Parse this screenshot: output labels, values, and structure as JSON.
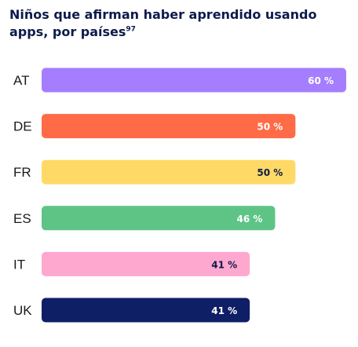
{
  "title": {
    "text": "Niños que afirman haber aprendido usando apps, por países",
    "footnote": "97"
  },
  "chart_data": {
    "type": "bar",
    "orientation": "horizontal",
    "title": "Niños que afirman haber aprendido usando apps, por países",
    "categories": [
      "AT",
      "DE",
      "FR",
      "ES",
      "IT",
      "UK"
    ],
    "values": [
      60,
      50,
      50,
      46,
      41,
      41
    ],
    "value_labels": [
      "60 %",
      "50 %",
      "50 %",
      "46 %",
      "41 %",
      "41 %"
    ],
    "colors": [
      "#a57dff",
      "#ff6b47",
      "#ffd966",
      "#5dc486",
      "#ffa8cf",
      "#0f1f66"
    ],
    "label_colors": [
      "#ffffff",
      "#ffffff",
      "#0d1b4c",
      "#ffffff",
      "#0d1b4c",
      "#ffffff"
    ],
    "xlim": [
      0,
      60
    ],
    "grid": false,
    "legend": "none"
  }
}
